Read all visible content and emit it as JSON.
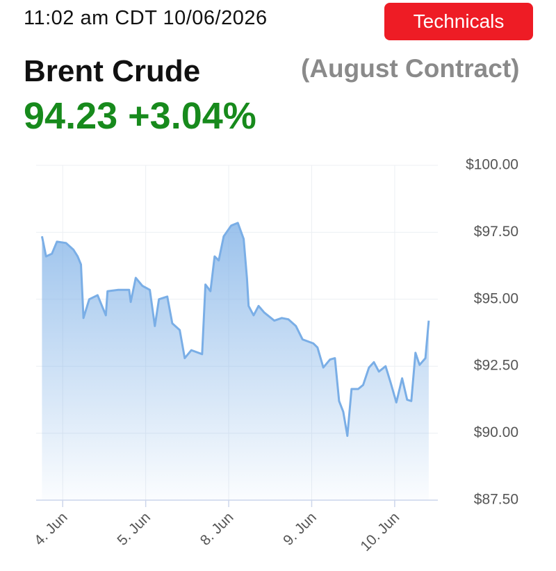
{
  "header": {
    "timestamp": "11:02 am CDT 10/06/2026",
    "button": "Technicals",
    "name": "Brent Crude",
    "contract": "(August Contract)",
    "quote": "94.23 +3.04%"
  },
  "chart_data": {
    "type": "area",
    "color": "#7aaee6",
    "x": [
      -0.25,
      -0.2,
      -0.13,
      -0.07,
      0.04,
      0.13,
      0.18,
      0.22,
      0.25,
      0.32,
      0.42,
      0.52,
      0.54,
      0.67,
      0.8,
      0.82,
      0.88,
      0.96,
      1.05,
      1.11,
      1.16,
      1.26,
      1.32,
      1.41,
      1.47,
      1.55,
      1.68,
      1.72,
      1.78,
      1.83,
      1.88,
      1.94,
      2.03,
      2.11,
      2.18,
      2.22,
      2.24,
      2.3,
      2.36,
      2.43,
      2.55,
      2.64,
      2.72,
      2.81,
      2.89,
      3.02,
      3.07,
      3.14,
      3.22,
      3.28,
      3.33,
      3.38,
      3.43,
      3.48,
      3.56,
      3.62,
      3.69,
      3.75,
      3.81,
      3.89,
      3.95,
      4.02,
      4.09,
      4.15,
      4.2,
      4.25,
      4.3,
      4.37,
      4.41
    ],
    "values": [
      97.35,
      96.6,
      96.7,
      97.15,
      97.1,
      96.85,
      96.6,
      96.3,
      94.3,
      95.0,
      95.15,
      94.4,
      95.3,
      95.35,
      95.35,
      94.9,
      95.8,
      95.5,
      95.35,
      94.0,
      95.0,
      95.1,
      94.1,
      93.85,
      92.8,
      93.1,
      92.95,
      95.55,
      95.3,
      96.6,
      96.45,
      97.35,
      97.75,
      97.85,
      97.25,
      95.8,
      94.75,
      94.4,
      94.75,
      94.5,
      94.2,
      94.3,
      94.25,
      94.0,
      93.5,
      93.35,
      93.2,
      92.45,
      92.75,
      92.8,
      91.2,
      90.8,
      89.9,
      91.65,
      91.65,
      91.8,
      92.45,
      92.65,
      92.3,
      92.5,
      91.9,
      91.15,
      92.05,
      91.25,
      91.2,
      93.0,
      92.55,
      92.8,
      94.2
    ],
    "xlim": [
      -0.32,
      4.52
    ],
    "xticks": [
      {
        "value": 0,
        "label": "4. Jun"
      },
      {
        "value": 1,
        "label": "5. Jun"
      },
      {
        "value": 2,
        "label": "8. Jun"
      },
      {
        "value": 3,
        "label": "9. Jun"
      },
      {
        "value": 4,
        "label": "10. Jun"
      }
    ],
    "ylim": [
      87.5,
      100
    ],
    "yticks": [
      {
        "value": 87.5,
        "label": "$87.50"
      },
      {
        "value": 90,
        "label": "$90.00"
      },
      {
        "value": 92.5,
        "label": "$92.50"
      },
      {
        "value": 95,
        "label": "$95.00"
      },
      {
        "value": 97.5,
        "label": "$97.50"
      },
      {
        "value": 100,
        "label": "$100.00"
      }
    ],
    "grid": true
  }
}
